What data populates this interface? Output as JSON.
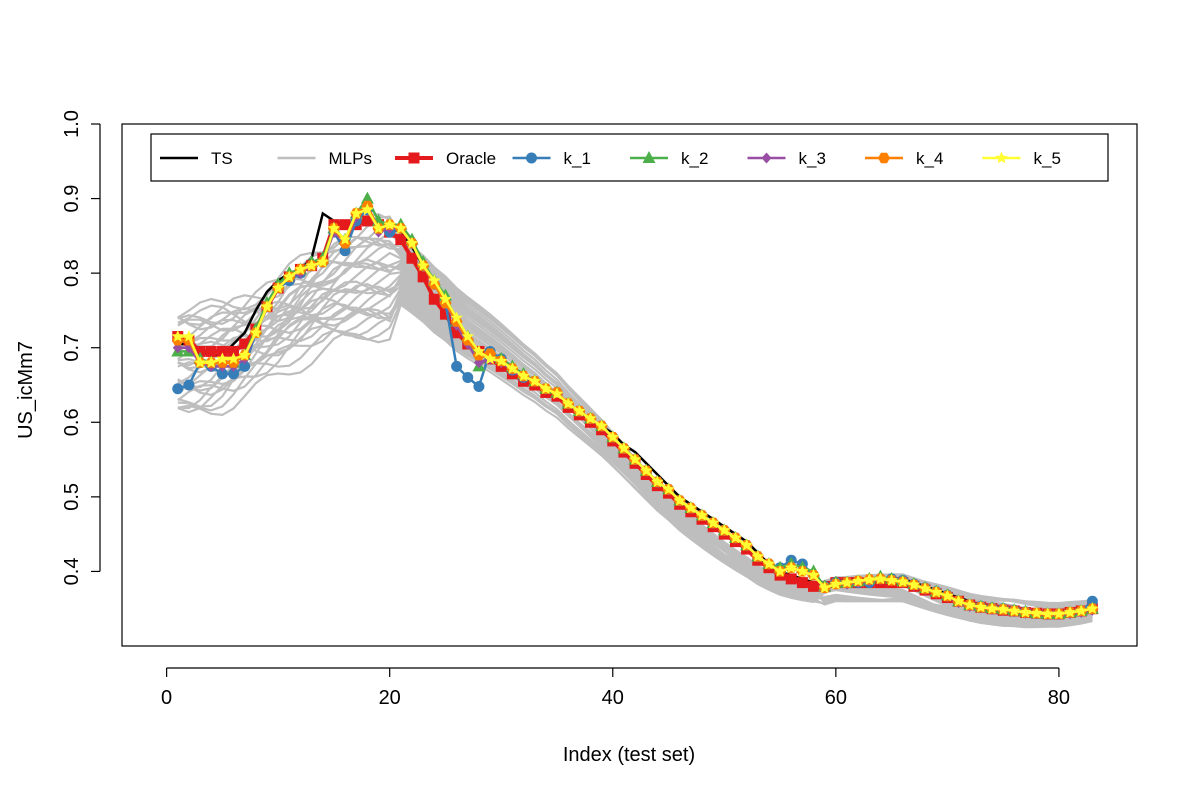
{
  "chart_data": {
    "type": "line",
    "xlabel": "Index (test set)",
    "ylabel": "US_icMm7",
    "xlim": [
      -4,
      87
    ],
    "ylim": [
      0.3,
      1.0
    ],
    "x_ticks": [
      0,
      20,
      40,
      60,
      80
    ],
    "y_ticks": [
      0.4,
      0.5,
      0.6,
      0.7,
      0.8,
      0.9,
      1.0
    ],
    "x_tick_labels": [
      "0",
      "20",
      "40",
      "60",
      "80"
    ],
    "y_tick_labels": [
      "0.4",
      "0.5",
      "0.6",
      "0.7",
      "0.8",
      "0.9",
      "1.0"
    ],
    "legend_position": "top",
    "legend": [
      {
        "name": "TS",
        "color": "#000000",
        "marker": "none"
      },
      {
        "name": "MLPs",
        "color": "#BEBEBE",
        "marker": "none"
      },
      {
        "name": "Oracle",
        "color": "#E41A1C",
        "marker": "square"
      },
      {
        "name": "k_1",
        "color": "#377EB8",
        "marker": "circle"
      },
      {
        "name": "k_2",
        "color": "#4DAF4A",
        "marker": "triangle"
      },
      {
        "name": "k_3",
        "color": "#984EA3",
        "marker": "diamond"
      },
      {
        "name": "k_4",
        "color": "#FF7F00",
        "marker": "hexagon"
      },
      {
        "name": "k_5",
        "color": "#FFFF33",
        "marker": "star"
      }
    ],
    "x_range": [
      1,
      83
    ],
    "ts": [
      0.705,
      0.705,
      0.695,
      0.69,
      0.69,
      0.705,
      0.72,
      0.75,
      0.775,
      0.79,
      0.8,
      0.805,
      0.82,
      0.88,
      0.87,
      0.865,
      0.86,
      0.875,
      0.87,
      0.86,
      0.855,
      0.835,
      0.81,
      0.785,
      0.765,
      0.735,
      0.71,
      0.695,
      0.685,
      0.68,
      0.67,
      0.66,
      0.655,
      0.645,
      0.635,
      0.625,
      0.615,
      0.605,
      0.595,
      0.585,
      0.57,
      0.56,
      0.545,
      0.53,
      0.515,
      0.5,
      0.49,
      0.48,
      0.47,
      0.46,
      0.45,
      0.44,
      0.425,
      0.41,
      0.4,
      0.395,
      0.39,
      0.385,
      0.38,
      0.385,
      0.39,
      0.39,
      0.39,
      0.39,
      0.39,
      0.39,
      0.385,
      0.38,
      0.375,
      0.37,
      0.365,
      0.36,
      0.355,
      0.353,
      0.351,
      0.35,
      0.348,
      0.346,
      0.344,
      0.343,
      0.345,
      0.347,
      0.35
    ],
    "oracle": [
      0.715,
      0.71,
      0.695,
      0.695,
      0.695,
      0.695,
      0.705,
      0.725,
      0.755,
      0.78,
      0.795,
      0.805,
      0.81,
      0.82,
      0.865,
      0.865,
      0.865,
      0.87,
      0.865,
      0.855,
      0.845,
      0.82,
      0.795,
      0.765,
      0.745,
      0.72,
      0.705,
      0.695,
      0.685,
      0.675,
      0.665,
      0.655,
      0.65,
      0.64,
      0.635,
      0.62,
      0.61,
      0.6,
      0.59,
      0.575,
      0.56,
      0.545,
      0.53,
      0.515,
      0.505,
      0.49,
      0.48,
      0.47,
      0.46,
      0.45,
      0.44,
      0.43,
      0.415,
      0.405,
      0.395,
      0.39,
      0.385,
      0.38,
      0.38,
      0.385,
      0.385,
      0.385,
      0.385,
      0.385,
      0.385,
      0.385,
      0.38,
      0.375,
      0.37,
      0.365,
      0.36,
      0.355,
      0.352,
      0.35,
      0.348,
      0.347,
      0.345,
      0.344,
      0.343,
      0.343,
      0.345,
      0.347,
      0.35
    ],
    "k_1": [
      0.645,
      0.65,
      0.68,
      0.675,
      0.665,
      0.665,
      0.675,
      0.72,
      0.755,
      0.78,
      0.79,
      0.8,
      0.81,
      0.815,
      0.855,
      0.83,
      0.87,
      0.885,
      0.865,
      0.855,
      0.86,
      0.84,
      0.81,
      0.785,
      0.76,
      0.675,
      0.66,
      0.648,
      0.695,
      0.685,
      0.67,
      0.66,
      0.655,
      0.645,
      0.64,
      0.625,
      0.615,
      0.605,
      0.595,
      0.58,
      0.565,
      0.55,
      0.535,
      0.52,
      0.51,
      0.495,
      0.485,
      0.475,
      0.465,
      0.455,
      0.445,
      0.435,
      0.42,
      0.41,
      0.405,
      0.415,
      0.41,
      0.395,
      0.38,
      0.385,
      0.385,
      0.385,
      0.385,
      0.39,
      0.39,
      0.388,
      0.383,
      0.378,
      0.373,
      0.368,
      0.36,
      0.355,
      0.353,
      0.351,
      0.35,
      0.348,
      0.346,
      0.344,
      0.343,
      0.343,
      0.345,
      0.347,
      0.36
    ],
    "k_2": [
      0.695,
      0.695,
      0.685,
      0.68,
      0.68,
      0.68,
      0.69,
      0.725,
      0.76,
      0.785,
      0.8,
      0.805,
      0.815,
      0.82,
      0.86,
      0.845,
      0.88,
      0.9,
      0.87,
      0.865,
      0.865,
      0.845,
      0.815,
      0.79,
      0.77,
      0.735,
      0.715,
      0.675,
      0.69,
      0.685,
      0.675,
      0.665,
      0.655,
      0.645,
      0.64,
      0.625,
      0.615,
      0.605,
      0.595,
      0.58,
      0.565,
      0.55,
      0.535,
      0.52,
      0.51,
      0.495,
      0.485,
      0.475,
      0.465,
      0.455,
      0.445,
      0.435,
      0.42,
      0.41,
      0.405,
      0.41,
      0.405,
      0.4,
      0.38,
      0.385,
      0.385,
      0.387,
      0.39,
      0.393,
      0.39,
      0.387,
      0.383,
      0.378,
      0.373,
      0.368,
      0.36,
      0.355,
      0.353,
      0.351,
      0.35,
      0.348,
      0.346,
      0.344,
      0.343,
      0.343,
      0.345,
      0.347,
      0.35
    ],
    "k_3": [
      0.7,
      0.7,
      0.68,
      0.675,
      0.675,
      0.675,
      0.685,
      0.72,
      0.755,
      0.78,
      0.795,
      0.8,
      0.81,
      0.815,
      0.855,
      0.84,
      0.875,
      0.89,
      0.855,
      0.86,
      0.86,
      0.84,
      0.81,
      0.785,
      0.76,
      0.73,
      0.705,
      0.68,
      0.685,
      0.68,
      0.67,
      0.66,
      0.655,
      0.645,
      0.64,
      0.625,
      0.615,
      0.605,
      0.595,
      0.58,
      0.565,
      0.55,
      0.535,
      0.52,
      0.51,
      0.495,
      0.485,
      0.475,
      0.465,
      0.455,
      0.445,
      0.435,
      0.42,
      0.41,
      0.4,
      0.405,
      0.4,
      0.395,
      0.378,
      0.383,
      0.383,
      0.385,
      0.387,
      0.39,
      0.388,
      0.385,
      0.381,
      0.376,
      0.371,
      0.366,
      0.358,
      0.353,
      0.351,
      0.349,
      0.348,
      0.346,
      0.344,
      0.343,
      0.342,
      0.342,
      0.343,
      0.345,
      0.348
    ],
    "k_4": [
      0.71,
      0.71,
      0.68,
      0.68,
      0.68,
      0.68,
      0.69,
      0.72,
      0.755,
      0.78,
      0.795,
      0.805,
      0.81,
      0.815,
      0.86,
      0.84,
      0.88,
      0.89,
      0.86,
      0.865,
      0.86,
      0.84,
      0.81,
      0.785,
      0.76,
      0.735,
      0.71,
      0.69,
      0.692,
      0.682,
      0.672,
      0.662,
      0.655,
      0.645,
      0.64,
      0.625,
      0.615,
      0.605,
      0.595,
      0.58,
      0.565,
      0.55,
      0.535,
      0.52,
      0.51,
      0.495,
      0.485,
      0.475,
      0.465,
      0.455,
      0.445,
      0.435,
      0.42,
      0.41,
      0.4,
      0.405,
      0.4,
      0.395,
      0.378,
      0.383,
      0.385,
      0.387,
      0.389,
      0.39,
      0.388,
      0.386,
      0.382,
      0.377,
      0.372,
      0.367,
      0.36,
      0.355,
      0.352,
      0.35,
      0.349,
      0.347,
      0.345,
      0.344,
      0.343,
      0.343,
      0.345,
      0.347,
      0.35
    ],
    "k_5": [
      0.715,
      0.715,
      0.68,
      0.68,
      0.685,
      0.685,
      0.69,
      0.72,
      0.755,
      0.78,
      0.795,
      0.805,
      0.81,
      0.815,
      0.86,
      0.845,
      0.88,
      0.885,
      0.86,
      0.865,
      0.86,
      0.84,
      0.81,
      0.79,
      0.765,
      0.74,
      0.715,
      0.695,
      0.685,
      0.682,
      0.672,
      0.662,
      0.655,
      0.645,
      0.638,
      0.625,
      0.615,
      0.605,
      0.595,
      0.58,
      0.565,
      0.55,
      0.535,
      0.52,
      0.51,
      0.495,
      0.485,
      0.475,
      0.465,
      0.455,
      0.445,
      0.435,
      0.42,
      0.41,
      0.4,
      0.405,
      0.4,
      0.395,
      0.378,
      0.383,
      0.385,
      0.387,
      0.389,
      0.39,
      0.388,
      0.386,
      0.382,
      0.377,
      0.372,
      0.367,
      0.36,
      0.355,
      0.352,
      0.35,
      0.349,
      0.347,
      0.345,
      0.344,
      0.343,
      0.343,
      0.345,
      0.347,
      0.35
    ],
    "mlps": {
      "count": 30,
      "start_range": [
        0.61,
        0.75
      ],
      "peak_range": [
        0.72,
        0.87
      ]
    }
  }
}
